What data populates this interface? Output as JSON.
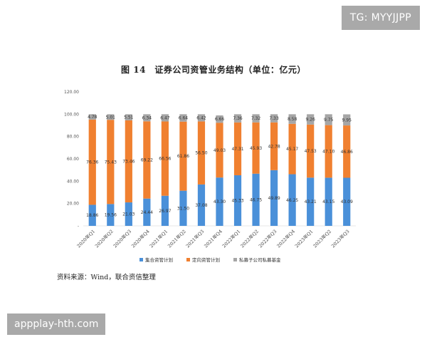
{
  "watermarks": {
    "top": "TG: MYYJJPP",
    "bottom": "appplay-hth.com"
  },
  "source_note": "资料来源：Wind，联合资信整理",
  "chart_data": {
    "type": "bar",
    "stacked": true,
    "title": "图 14　证券公司资管业务结构（单位：亿元）",
    "categories": [
      "2020年Q1",
      "2020年Q2",
      "2020年Q3",
      "2020年Q4",
      "2021年Q1",
      "2021年Q2",
      "2021年Q3",
      "2021年Q4",
      "2022年Q1",
      "2022年Q2",
      "2022年Q3",
      "2022年Q4",
      "2023年Q1",
      "2023年Q2",
      "2023年Q3"
    ],
    "series": [
      {
        "name": "集合资管计划",
        "color": "#4a90d9",
        "values": [
          18.86,
          19.56,
          21.03,
          24.44,
          26.97,
          31.5,
          37.08,
          43.3,
          45.33,
          46.75,
          49.89,
          46.25,
          43.21,
          43.15,
          43.09
        ]
      },
      {
        "name": "定向资管计划",
        "color": "#f08030",
        "values": [
          76.36,
          75.43,
          73.46,
          69.22,
          66.56,
          61.86,
          56.5,
          49.03,
          47.31,
          45.93,
          42.78,
          45.17,
          47.53,
          47.1,
          46.86
        ]
      },
      {
        "name": "私募子公司私募基金",
        "color": "#a6a6a6",
        "values": [
          4.78,
          5.01,
          5.51,
          6.34,
          6.47,
          6.64,
          6.42,
          6.66,
          7.36,
          7.32,
          7.33,
          8.58,
          9.26,
          9.75,
          9.95
        ]
      }
    ],
    "labels": {
      "集合资管计划": [
        "18.86",
        "19.56",
        "21.03",
        "24.44",
        "26.97",
        "31.50",
        "37.08",
        "43.30",
        "45.33",
        "46.75",
        "49.89",
        "46.25",
        "43.21",
        "43.15",
        "43.09"
      ],
      "定向资管计划": [
        "76.36",
        "75.43",
        "73.46",
        "69.22",
        "66.56",
        "61.86",
        "56.50",
        "49.03",
        "47.31",
        "45.93",
        "42.78",
        "45.17",
        "47.53",
        "47.10",
        "46.86"
      ],
      "私募子公司私募基金": [
        "4.78",
        "5.01",
        "5.51",
        "6.34",
        "6.47",
        "6.64",
        "6.42",
        "6.66",
        "7.36",
        "7.32",
        "7.33",
        "8.58",
        "9.26",
        "9.75",
        "9.95"
      ]
    },
    "y_ticks": [
      "-",
      "20.00",
      "40.00",
      "60.00",
      "80.00",
      "100.00",
      "120.00"
    ],
    "ylim": [
      0,
      120
    ],
    "xlabel": "",
    "ylabel": "",
    "grid": false,
    "legend_position": "bottom"
  }
}
